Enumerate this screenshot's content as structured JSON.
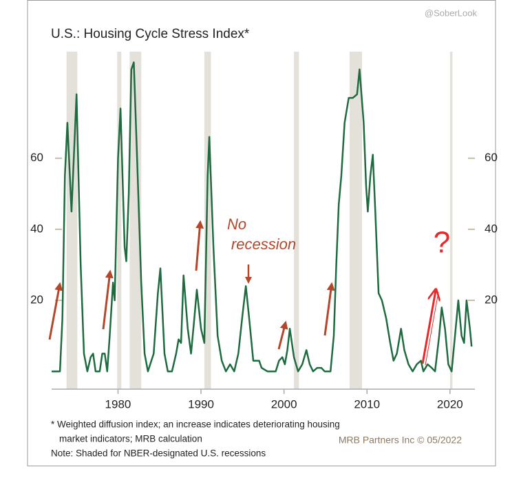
{
  "chart_data": {
    "type": "line",
    "title": "U.S.: Housing Cycle Stress Index*",
    "watermark": "@SoberLook",
    "notes": [
      "* Weighted diffusion index; an increase indicates deteriorating housing",
      "market indicators; MRB calculation",
      "Note: Shaded for NBER-designated U.S. recessions"
    ],
    "source": "MRB Partners Inc © 05/2022",
    "annotations": [
      {
        "lines": [
          "No",
          "recession"
        ],
        "color": "#b5462a"
      },
      {
        "lines": [
          "?"
        ],
        "color": "#e8282a"
      }
    ],
    "color": "#1e6b3f",
    "recession_color": "#e4e1da",
    "recessions": [
      [
        1973.8,
        1975.1
      ],
      [
        1979.9,
        1980.4
      ],
      [
        1981.4,
        1982.8
      ],
      [
        1990.4,
        1991.2
      ],
      [
        2001.2,
        2001.8
      ],
      [
        2007.9,
        2009.4
      ],
      [
        2020.0,
        2020.3
      ]
    ],
    "xlim": [
      1972,
      2023
    ],
    "xticks": [
      1980,
      1990,
      2000,
      2010,
      2020
    ],
    "ylim": [
      -5,
      90
    ],
    "yticks": [
      20,
      40,
      60
    ],
    "x": [
      1972,
      1973,
      1973.3,
      1973.6,
      1973.9,
      1974.4,
      1975.0,
      1975.5,
      1975.9,
      1976.3,
      1976.7,
      1977.0,
      1977.3,
      1977.8,
      1978.1,
      1978.4,
      1978.7,
      1979.0,
      1979.4,
      1979.6,
      1980.0,
      1980.3,
      1980.8,
      1981.0,
      1981.3,
      1981.6,
      1981.9,
      1982.3,
      1982.8,
      1983.2,
      1983.6,
      1984.3,
      1984.8,
      1985.1,
      1985.6,
      1986.0,
      1986.5,
      1987.0,
      1987.3,
      1987.6,
      1987.9,
      1988.4,
      1988.8,
      1989.2,
      1989.5,
      1990.0,
      1990.4,
      1990.8,
      1991.0,
      1991.5,
      1992.0,
      1992.5,
      1993.0,
      1993.5,
      1994.0,
      1994.5,
      1995.0,
      1995.4,
      1995.8,
      1996.3,
      1997.0,
      1997.3,
      1998.0,
      1999.0,
      1999.4,
      1999.8,
      2000.1,
      2000.4,
      2000.7,
      2001.2,
      2001.7,
      2002.2,
      2002.7,
      2003.1,
      2003.5,
      2004.0,
      2004.5,
      2004.9,
      2005.6,
      2006.0,
      2006.3,
      2006.6,
      2006.9,
      2007.3,
      2007.8,
      2008.3,
      2008.8,
      2009.1,
      2009.6,
      2009.9,
      2010.1,
      2010.4,
      2010.7,
      2011.0,
      2011.4,
      2011.8,
      2012.3,
      2012.8,
      2013.2,
      2013.6,
      2014.1,
      2014.5,
      2015.0,
      2015.5,
      2016.0,
      2016.5,
      2016.8,
      2017.3,
      2017.8,
      2018.2,
      2018.7,
      2019.0,
      2019.4,
      2019.8,
      2020.2,
      2020.6,
      2021.0,
      2021.4,
      2021.7,
      2022.0,
      2022.4,
      2022.6
    ],
    "values": [
      0,
      0,
      15,
      55,
      70,
      45,
      78,
      30,
      5,
      0,
      4,
      5,
      0,
      0,
      5,
      5,
      0,
      10,
      25,
      20,
      60,
      74,
      35,
      31,
      50,
      85,
      87,
      60,
      25,
      5,
      0,
      5,
      22,
      29,
      5,
      0,
      0,
      5,
      9,
      8,
      27,
      12,
      5,
      15,
      23,
      12,
      8,
      55,
      66,
      35,
      10,
      3,
      0,
      2,
      0,
      5,
      16,
      24,
      15,
      3,
      3,
      1,
      0,
      0,
      3,
      4,
      2,
      6,
      12,
      4,
      0,
      2,
      6,
      2,
      0,
      1,
      1,
      0,
      0,
      10,
      30,
      47,
      55,
      70,
      77,
      77,
      78,
      85,
      70,
      52,
      45,
      55,
      61,
      45,
      22,
      20,
      15,
      8,
      3,
      5,
      12,
      6,
      2,
      0,
      2,
      3,
      0,
      2,
      1,
      0,
      10,
      18,
      12,
      2,
      0,
      10,
      20,
      10,
      8,
      20,
      12,
      7
    ]
  }
}
